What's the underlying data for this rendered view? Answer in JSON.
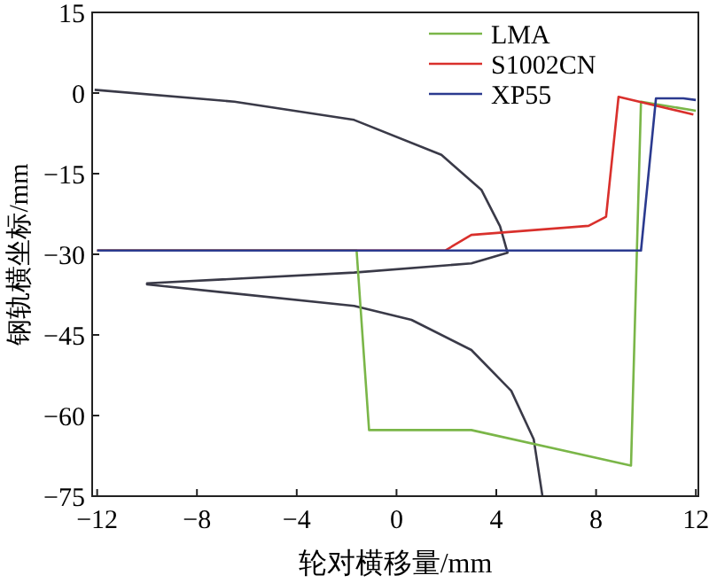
{
  "chart_data": {
    "type": "line",
    "xlabel": "轮对横移量/mm",
    "ylabel": "钢轨横坐标/mm",
    "xlim": [
      -12.2,
      12.1
    ],
    "ylim": [
      -75,
      15
    ],
    "xticks": [
      {
        "value": -12,
        "label": "−12"
      },
      {
        "value": -8,
        "label": "−8"
      },
      {
        "value": -4,
        "label": "−4"
      },
      0,
      4,
      8,
      12
    ],
    "yticks": [
      {
        "value": -75,
        "label": "−75"
      },
      {
        "value": -60,
        "label": "−60"
      },
      {
        "value": -45,
        "label": "−45"
      },
      {
        "value": -30,
        "label": "−30"
      },
      {
        "value": -15,
        "label": "−15"
      },
      0,
      15
    ],
    "grid": false,
    "legend": "top right",
    "marker": "none",
    "line_style": "solid",
    "series": [
      {
        "color": "#3a3a48",
        "x": [
          -12.1,
          -6.5,
          -1.7,
          1.8,
          3.4,
          4.15,
          4.45,
          3,
          -1.7,
          -10,
          -10,
          -1.7,
          0.6,
          3,
          4.6,
          5.5,
          5.85
        ],
        "values": [
          0.6,
          -1.6,
          -5,
          -11.5,
          -18,
          -24.8,
          -29.7,
          -31.7,
          -33.4,
          -35.4,
          -35.6,
          -39.6,
          -42.2,
          -47.8,
          -55.4,
          -64.4,
          -75
        ]
      },
      {
        "name": "LMA",
        "color": "#7ab648",
        "x": [
          -12,
          -1.6,
          -1.1,
          3,
          9.4,
          9.8,
          12
        ],
        "values": [
          -29.3,
          -29.3,
          -62.7,
          -62.7,
          -69.3,
          -1.6,
          -3.3
        ]
      },
      {
        "name": "S1002CN",
        "color": "#d9302c",
        "x": [
          -12,
          1.95,
          3,
          7.7,
          8.4,
          8.9,
          11.9
        ],
        "values": [
          -29.3,
          -29.3,
          -26.4,
          -24.7,
          -23,
          -0.7,
          -4
        ]
      },
      {
        "name": "XP55",
        "color": "#2b3a8f",
        "x": [
          -12,
          9.8,
          10.4,
          11.5,
          12
        ],
        "values": [
          -29.3,
          -29.3,
          -1,
          -1,
          -1.3
        ]
      }
    ]
  }
}
